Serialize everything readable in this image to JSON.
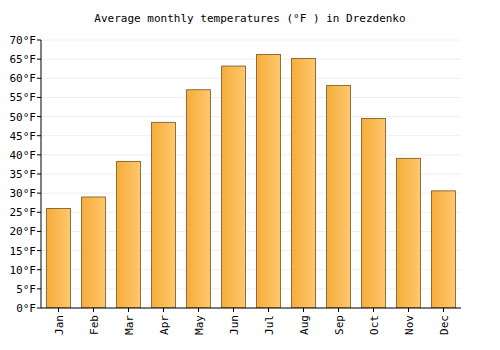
{
  "chart_data": {
    "type": "bar",
    "title": "Average monthly temperatures (°F ) in Drezdenko",
    "categories": [
      "Jan",
      "Feb",
      "Mar",
      "Apr",
      "May",
      "Jun",
      "Jul",
      "Aug",
      "Sep",
      "Oct",
      "Nov",
      "Dec"
    ],
    "values": [
      26,
      29,
      38.3,
      48.5,
      57,
      63.2,
      66.2,
      65.2,
      58.1,
      49.5,
      39.1,
      30.6
    ],
    "color": "#ffb43c",
    "ylim": [
      0,
      70
    ],
    "yticks": [
      {
        "value": 0,
        "label": "0°F"
      },
      {
        "value": 5,
        "label": "5°F"
      },
      {
        "value": 10,
        "label": "10°F"
      },
      {
        "value": 15,
        "label": "15°F"
      },
      {
        "value": 20,
        "label": "20°F"
      },
      {
        "value": 25,
        "label": "25°F"
      },
      {
        "value": 30,
        "label": "30°F"
      },
      {
        "value": 35,
        "label": "35°F"
      },
      {
        "value": 40,
        "label": "40°F"
      },
      {
        "value": 45,
        "label": "45°F"
      },
      {
        "value": 50,
        "label": "50°F"
      },
      {
        "value": 55,
        "label": "55°F"
      },
      {
        "value": 60,
        "label": "60°F"
      },
      {
        "value": 65,
        "label": "65°F"
      },
      {
        "value": 70,
        "label": "70°F"
      }
    ],
    "grid": true
  }
}
